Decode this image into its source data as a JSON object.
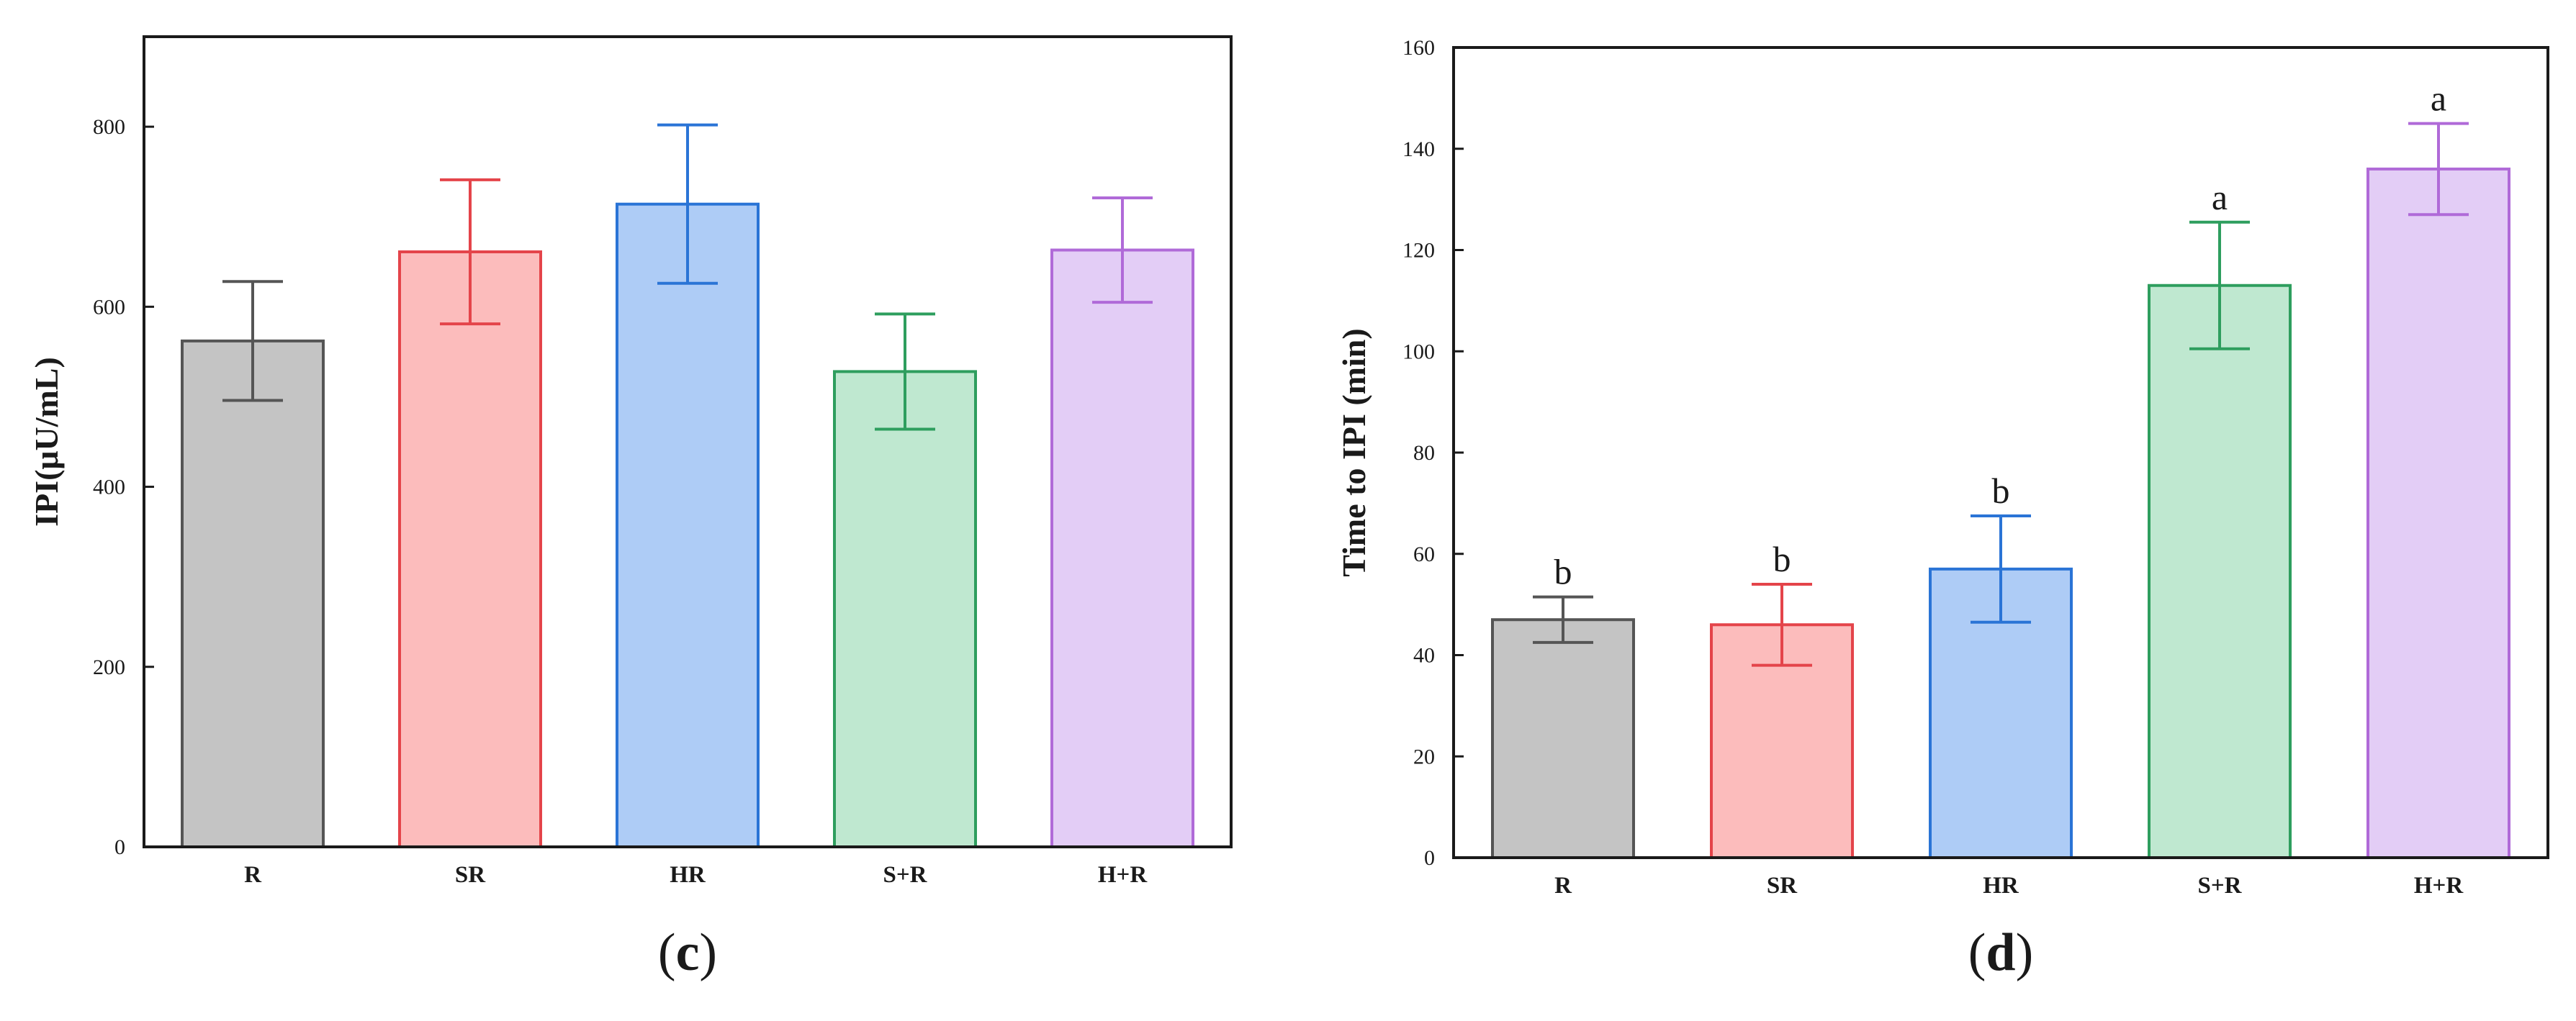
{
  "colors": {
    "axis": "#1a1a1a",
    "series": [
      {
        "fill": "#c4c4c4",
        "stroke": "#555555"
      },
      {
        "fill": "#fcbcbc",
        "stroke": "#e4444a"
      },
      {
        "fill": "#aeccf6",
        "stroke": "#2a74d6"
      },
      {
        "fill": "#bfe8d0",
        "stroke": "#2e9e5e"
      },
      {
        "fill": "#e3cdf6",
        "stroke": "#b06ad8"
      }
    ]
  },
  "chart_data": [
    {
      "type": "bar",
      "panel_label": "(c)",
      "panel_letter": "c",
      "title": "",
      "xlabel": "",
      "ylabel": "IPI(μU/mL)",
      "categories": [
        "R",
        "SR",
        "HR",
        "S+R",
        "H+R"
      ],
      "values": [
        562,
        661,
        714,
        528,
        663
      ],
      "errors": [
        66,
        80,
        88,
        64,
        58
      ],
      "significance": [],
      "ylim": [
        0,
        900
      ],
      "yticks": [
        0,
        200,
        400,
        600,
        800
      ],
      "grid": false,
      "legend": "none"
    },
    {
      "type": "bar",
      "panel_label": "(d)",
      "panel_letter": "d",
      "title": "",
      "xlabel": "",
      "ylabel": "Time to IPI (min)",
      "categories": [
        "R",
        "SR",
        "HR",
        "S+R",
        "H+R"
      ],
      "values": [
        47,
        46,
        57,
        113,
        136
      ],
      "errors": [
        4.5,
        8,
        10.5,
        12.5,
        9
      ],
      "significance": [
        "b",
        "b",
        "b",
        "a",
        "a"
      ],
      "ylim": [
        0,
        160
      ],
      "yticks": [
        0,
        20,
        40,
        60,
        80,
        100,
        120,
        140,
        160
      ],
      "grid": false,
      "legend": "none"
    }
  ]
}
